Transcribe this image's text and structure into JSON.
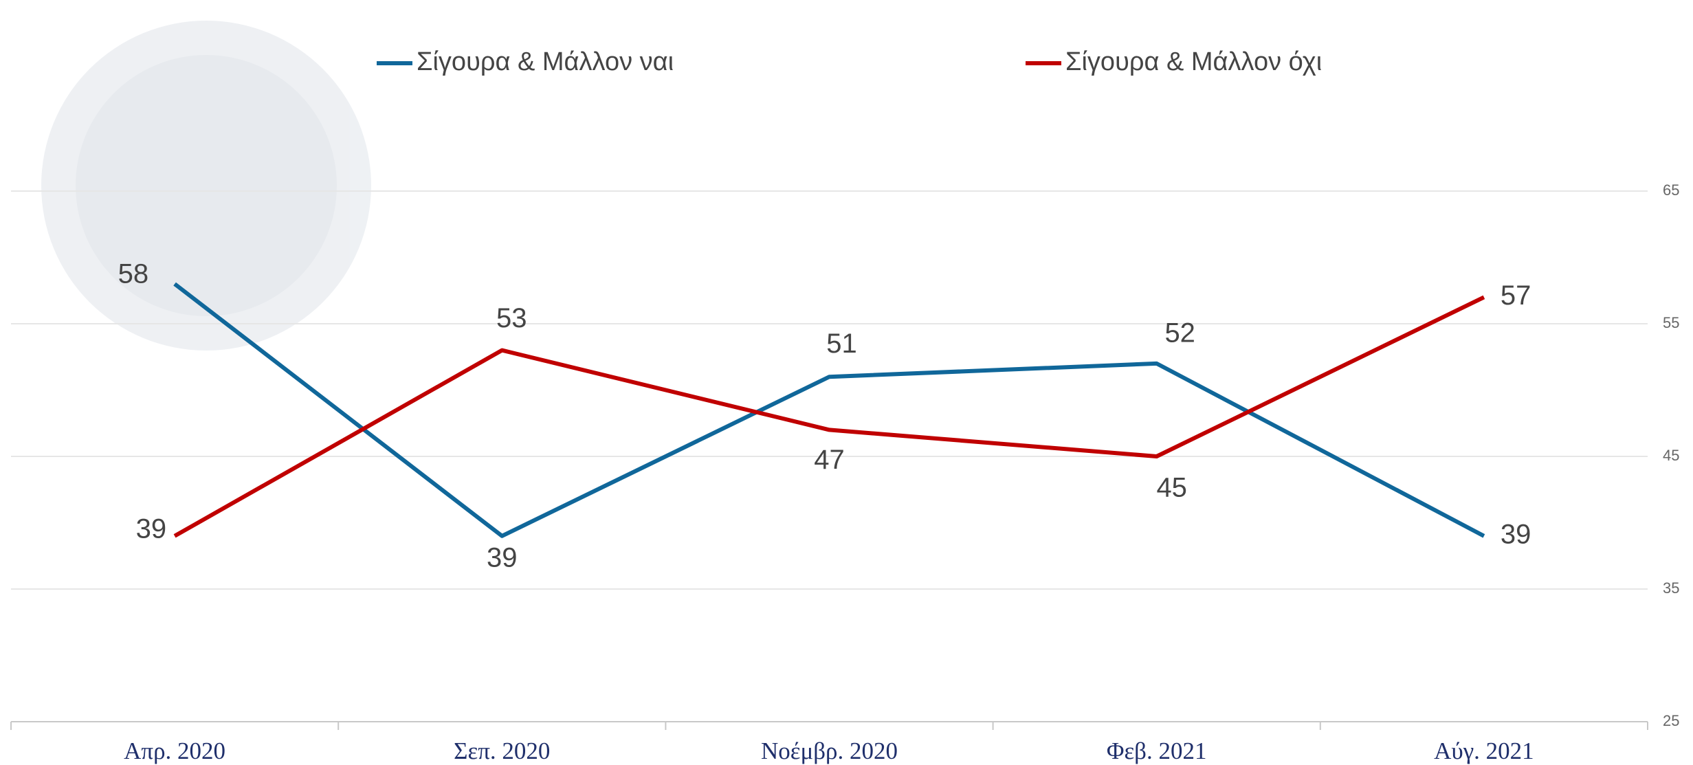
{
  "chart_data": {
    "type": "line",
    "categories": [
      "Απρ. 2020",
      "Σεπ. 2020",
      "Νοέμβρ. 2020",
      "Φεβ. 2021",
      "Αύγ. 2021"
    ],
    "series": [
      {
        "name": "Σίγουρα & Μάλλον ναι",
        "color": "#10679a",
        "values": [
          58,
          39,
          51,
          52,
          39
        ]
      },
      {
        "name": "Σίγουρα & Μάλλον όχι",
        "color": "#c00000",
        "values": [
          39,
          53,
          47,
          45,
          57
        ]
      }
    ],
    "ylim": [
      25,
      75
    ],
    "yticks": [
      25,
      35,
      45,
      55,
      65
    ],
    "grid": true
  }
}
